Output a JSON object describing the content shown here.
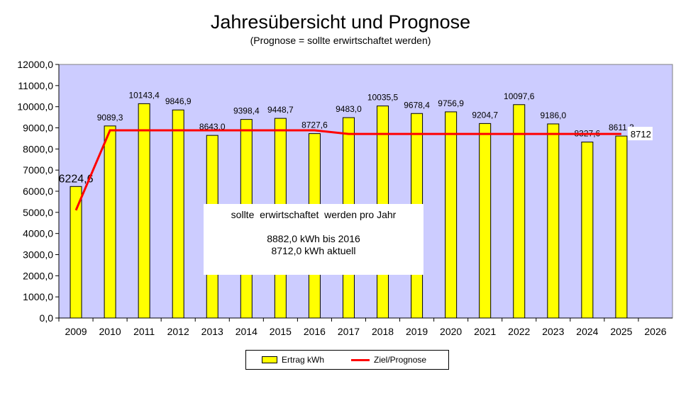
{
  "chart_data": {
    "type": "bar",
    "title": "Jahresübersicht und Prognose",
    "subtitle": "(Prognose = sollte erwirtschaftet werden)",
    "categories": [
      "2009",
      "2010",
      "2011",
      "2012",
      "2013",
      "2014",
      "2015",
      "2016",
      "2017",
      "2018",
      "2019",
      "2020",
      "2021",
      "2022",
      "2023",
      "2024",
      "2025",
      "2026"
    ],
    "series": [
      {
        "name": "Ertrag kWh",
        "type": "bar",
        "color": "#ffff00",
        "values": [
          6224.6,
          9089.3,
          10143.4,
          9846.9,
          8643.0,
          9398.4,
          9448.7,
          8727.6,
          9483.0,
          10035.5,
          9678.4,
          9756.9,
          9204.7,
          10097.6,
          9186.0,
          8327.6,
          8611.3,
          null
        ],
        "labels": [
          "6224,6",
          "9089,3",
          "10143,4",
          "9846,9",
          "8643,0",
          "9398,4",
          "9448,7",
          "8727,6",
          "9483,0",
          "10035,5",
          "9678,4",
          "9756,9",
          "9204,7",
          "10097,6",
          "9186,0",
          "8327,6",
          "8611,3",
          ""
        ]
      },
      {
        "name": "Ziel/Prognose",
        "type": "line",
        "color": "#ff0000",
        "values": [
          5100,
          8882,
          8882,
          8882,
          8882,
          8882,
          8882,
          8882,
          8712,
          8712,
          8712,
          8712,
          8712,
          8712,
          8712,
          8712,
          8712,
          null
        ],
        "end_label": "8712"
      }
    ],
    "ylim": [
      0,
      12000
    ],
    "yticks": [
      "0,0",
      "1000,0",
      "2000,0",
      "3000,0",
      "4000,0",
      "5000,0",
      "6000,0",
      "7000,0",
      "8000,0",
      "9000,0",
      "10000,0",
      "11000,0",
      "12000,0"
    ],
    "plot_background": "#ccccff",
    "legend_position": "bottom",
    "annotation": [
      "sollte  erwirtschaftet  werden pro Jahr",
      "",
      "8882,0 kWh bis 2016",
      "8712,0 kWh aktuell"
    ]
  }
}
